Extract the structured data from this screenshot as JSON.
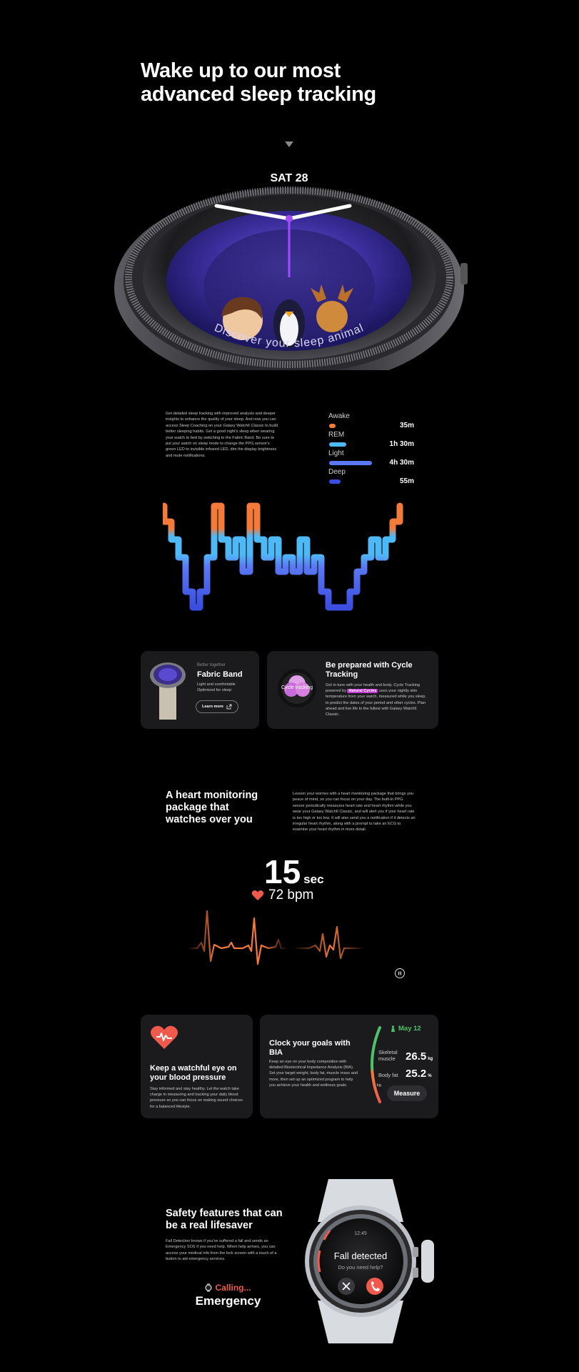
{
  "hero": {
    "title_line1": "Wake up to our most",
    "title_line2": "advanced sleep tracking",
    "watch_date": "SAT 28",
    "watch_curved_text": "Discover your sleep animal"
  },
  "sleep": {
    "copy": "Get detailed sleep tracking with improved analysis and deeper insights to enhance the quality of your sleep. And now you can access Sleep Coaching on your Galaxy Watch6 Classic to build better sleeping habits. Get a good night's sleep when wearing your watch to bed by switching to the Fabric Band. Be sure to put your watch on sleep mode to change the PPG sensor's green LED to invisible infrared LED, dim the display brightness and mute notifications.",
    "stages": [
      {
        "name": "Awake",
        "value": "35m",
        "color": "#f47a3a"
      },
      {
        "name": "REM",
        "value": "1h 30m",
        "color": "#4fb8f6"
      },
      {
        "name": "Light",
        "value": "4h 30m",
        "color": "#5a78f3"
      },
      {
        "name": "Deep",
        "value": "55m",
        "color": "#3b4ee0"
      }
    ]
  },
  "fabric_card": {
    "eyebrow": "Better together",
    "title": "Fabric Band",
    "body_line1": "Light and comfortable",
    "body_line2": "Optimized for sleep",
    "button": "Learn more"
  },
  "cycle_card": {
    "title": "Be prepared with Cycle Tracking",
    "icon_label": "Cycle tracking",
    "body_pre": "Get in tune with your health and body. Cycle Tracking powered by",
    "body_highlight": "Natural Cycles",
    "body_post": "uses your nightly skin temperature from your watch, measured while you sleep, to predict the dates of your period and other cycles. Plan ahead and live life to the fullest with Galaxy Watch6 Classic."
  },
  "heart": {
    "title": "A heart monitoring package that watches over you",
    "copy": "Lessen your worries with a heart monitoring package that brings you peace of mind, so you can focus on your day. The built-in PPG sensor periodically measures heart rate and heart rhythm while you wear your Galaxy Watch6 Classic, and will alert you if your heart rate is too high or too low. It will also send you a notification if it detects an irregular heart rhythm, along with a prompt to take an ECG to examine your heart rhythm in more detail.",
    "timer_value": "15",
    "timer_unit": "sec",
    "bpm": "72 bpm"
  },
  "bp_card": {
    "title": "Keep a watchful eye on your blood pressure",
    "body": "Stay informed and stay healthy. Let the watch take charge in measuring and tracking your daily blood pressure so you can focus on making sound choices for a balanced lifestyle."
  },
  "bia_card": {
    "title": "Clock your goals with BIA",
    "body": "Keep an eye on your body composition with detailed Bioelectrical Impedance Analysis (BIA). Set your target weight, body fat, muscle mass and more, then set up an optimized program to help you achieve your health and wellness goals.",
    "date": "May 12",
    "metric1_label": "Skeletal muscle",
    "metric1_value": "26.5",
    "metric1_unit": "kg",
    "metric2_label": "Body fat",
    "metric2_value": "25.2",
    "metric2_unit": "%",
    "gauge_unit": "kg",
    "button": "Measure"
  },
  "safety": {
    "title": "Safety features that can be a real lifesaver",
    "copy": "Fall Detection knows if you've suffered a fall and sends an Emergency SOS if you need help. When help arrives, you can access your medical info from the lock screen with a touch of a button to aid emergency services.",
    "calling": "Calling...",
    "emergency": "Emergency",
    "watch_time": "12:45",
    "watch_alert": "Fall detected",
    "watch_question": "Do you need help?"
  }
}
